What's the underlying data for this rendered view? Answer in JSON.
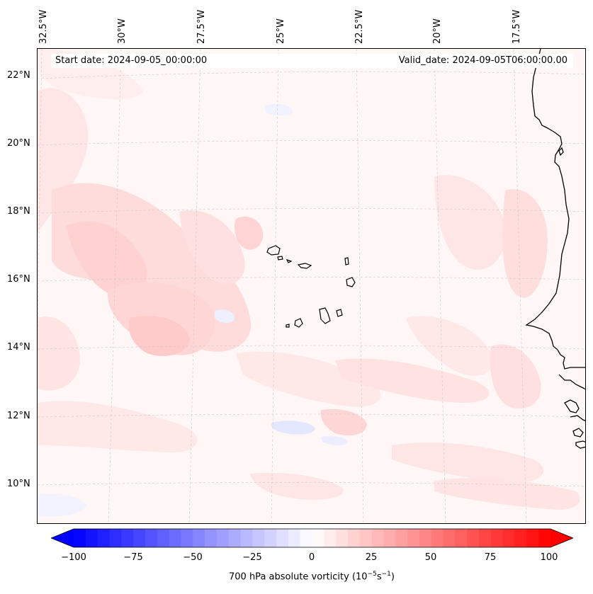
{
  "map": {
    "lon_labels": [
      "32.5°W",
      "30°W",
      "27.5°W",
      "25°W",
      "22.5°W",
      "20°W",
      "17.5°W"
    ],
    "lat_labels": [
      "22°N",
      "20°N",
      "18°N",
      "16°N",
      "14°N",
      "12°N",
      "10°N"
    ],
    "start_date": "Start date: 2024-09-05_00:00:00",
    "valid_date": "Valid_date: 2024-09-05T06:00:00.00",
    "field_colors": {
      "background": "#fff7f6",
      "light_red": "#ffe4e4",
      "medium_red": "#ffd0d0",
      "light_blue": "#eef0ff",
      "coastline": "#000000",
      "grid": "#c8c8c8"
    }
  },
  "colorbar": {
    "ticks": [
      "−100",
      "−75",
      "−50",
      "−25",
      "0",
      "25",
      "50",
      "75",
      "100"
    ],
    "label_prefix": "700 hPa absolute vorticity (10",
    "label_exp1": "−5",
    "label_mid": "s",
    "label_exp2": "−1",
    "label_suffix": ")",
    "min_color": "#0000ff",
    "mid_color": "#ffffff",
    "max_color": "#ff0000"
  }
}
